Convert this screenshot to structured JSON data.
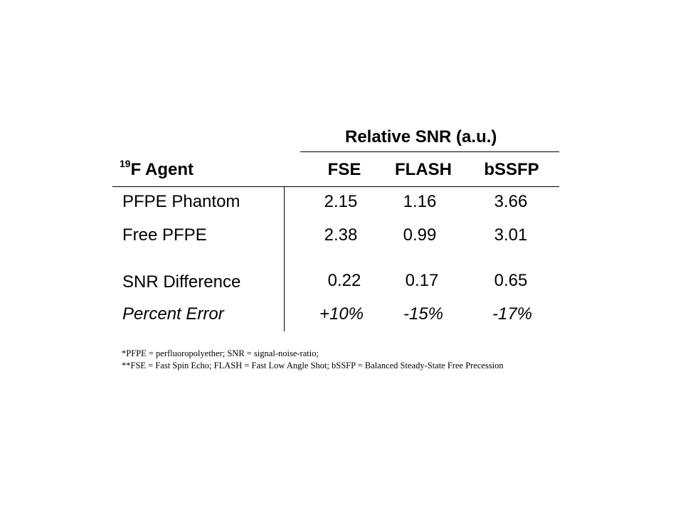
{
  "table": {
    "group_header": "Relative SNR (a.u.)",
    "agent_header_sup": "19",
    "agent_header": "F Agent",
    "columns": [
      "FSE",
      "FLASH",
      "bSSFP"
    ],
    "rows": [
      {
        "label": "PFPE Phantom",
        "values": [
          "2.15",
          "1.16",
          "3.66"
        ]
      },
      {
        "label": "Free PFPE",
        "values": [
          "2.38",
          "0.99",
          "3.01"
        ]
      },
      {
        "label": "SNR Difference",
        "values": [
          "0.22",
          "0.17",
          "0.65"
        ]
      },
      {
        "label": "Percent Error",
        "values": [
          "+10%",
          "-15%",
          "-17%"
        ]
      }
    ]
  },
  "footnotes": [
    "*PFPE = perfluoropolyether;  SNR = signal-noise-ratio;",
    "**FSE = Fast Spin Echo; FLASH = Fast Low Angle Shot; bSSFP = Balanced Steady-State Free Precession"
  ]
}
